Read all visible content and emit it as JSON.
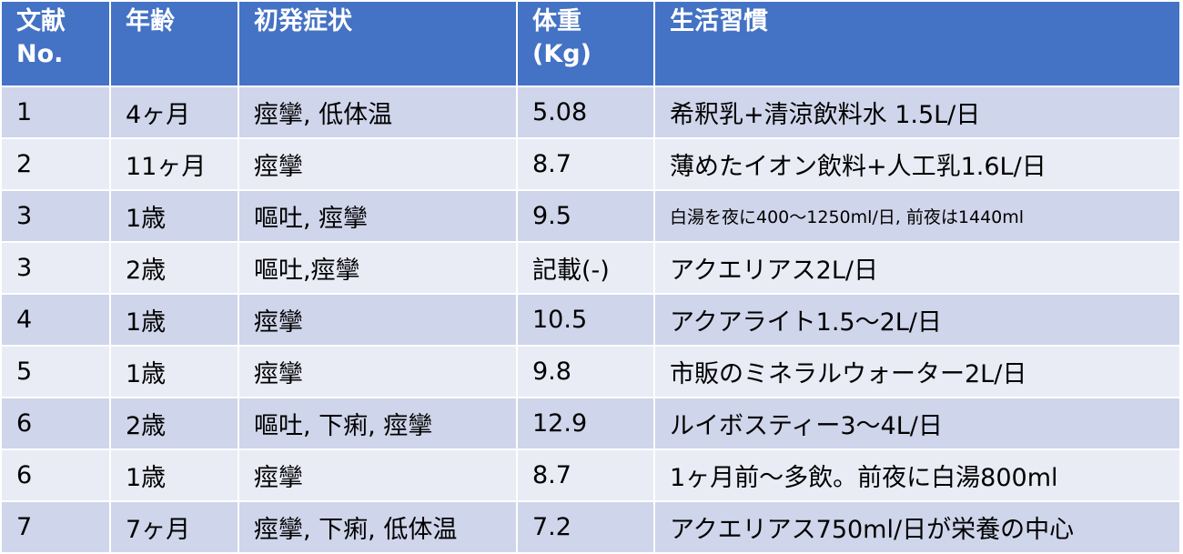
{
  "table": {
    "headers": [
      {
        "line1": "文献",
        "line2": "No."
      },
      {
        "line1": "年齢",
        "line2": ""
      },
      {
        "line1": "初発症状",
        "line2": ""
      },
      {
        "line1": "体重",
        "line2": "(Kg)"
      },
      {
        "line1": "生活習慣",
        "line2": ""
      }
    ],
    "rows": [
      [
        "1",
        "4ヶ月",
        "痙攣, 低体温",
        "5.08",
        "希釈乳+清涼飲料水 1.5L/日"
      ],
      [
        "2",
        "11ヶ月",
        "痙攣",
        "8.7",
        "薄めたイオン飲料+人工乳1.6L/日"
      ],
      [
        "3",
        "1歳",
        "嘔吐, 痙攣",
        "9.5",
        "白湯を夜に400～1250ml/日, 前夜は1440ml"
      ],
      [
        "3",
        "2歳",
        "嘔吐,痙攣",
        "記載(-)",
        "アクエリアス2L/日"
      ],
      [
        "4",
        "1歳",
        "痙攣",
        "10.5",
        "アクアライト1.5～2L/日"
      ],
      [
        "5",
        "1歳",
        "痙攣",
        "9.8",
        "市販のミネラルウォーター2L/日"
      ],
      [
        "6",
        "2歳",
        "嘔吐, 下痢, 痙攣",
        "12.9",
        "ルイボスティー3～4L/日"
      ],
      [
        "6",
        "1歳",
        "痙攣",
        "8.7",
        "1ヶ月前～多飲。前夜に白湯800ml"
      ],
      [
        "7",
        "7ヶ月",
        "痙攣, 下痢, 低体温",
        "7.2",
        "アクエリアス750ml/日が栄養の中心"
      ]
    ]
  },
  "colors": {
    "header_bg": "#4472c4",
    "row_odd_bg": "#cfd5ea",
    "row_even_bg": "#e9ebf5"
  }
}
